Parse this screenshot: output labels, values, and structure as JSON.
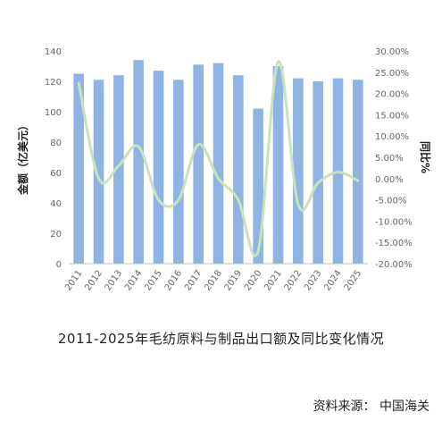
{
  "chart_data": {
    "type": "bar",
    "categories": [
      "2011",
      "2012",
      "2013",
      "2014",
      "2015",
      "2016",
      "2017",
      "2018",
      "2019",
      "2020",
      "2021",
      "2022",
      "2023",
      "2024",
      "2025"
    ],
    "series": [
      {
        "type": "bar",
        "axis": "left",
        "values": [
          125,
          121,
          124,
          134,
          127,
          121,
          131,
          132,
          124,
          102,
          130,
          122,
          120,
          122,
          121
        ]
      },
      {
        "type": "line",
        "axis": "right",
        "values": [
          22.5,
          0.0,
          3.0,
          7.5,
          -5.0,
          -5.0,
          8.0,
          0.0,
          -5.0,
          -17.0,
          27.5,
          -6.0,
          -1.0,
          1.5,
          -0.5
        ]
      }
    ],
    "title": "2011-2025年毛纺原料与制品出口额及同比变化情况",
    "ylabel": "金额（亿美元）",
    "y2label": "同比%",
    "ylim": [
      0,
      140
    ],
    "y2lim": [
      -20,
      30
    ],
    "yticks": [
      "0",
      "20",
      "40",
      "60",
      "80",
      "100",
      "120",
      "140"
    ],
    "y2ticks": [
      "-20.00%",
      "-15.00%",
      "-10.00%",
      "-5.00%",
      "0.00%",
      "5.00%",
      "10.00%",
      "15.00%",
      "20.00%",
      "25.00%",
      "30.00%"
    ],
    "grid": false,
    "legend": "none",
    "colors": {
      "bar": "#8fb4e3",
      "line": "#c9e3b8",
      "axis": "#bfbfbf",
      "text": "#666666"
    }
  },
  "source": "资料来源：  中国海关"
}
